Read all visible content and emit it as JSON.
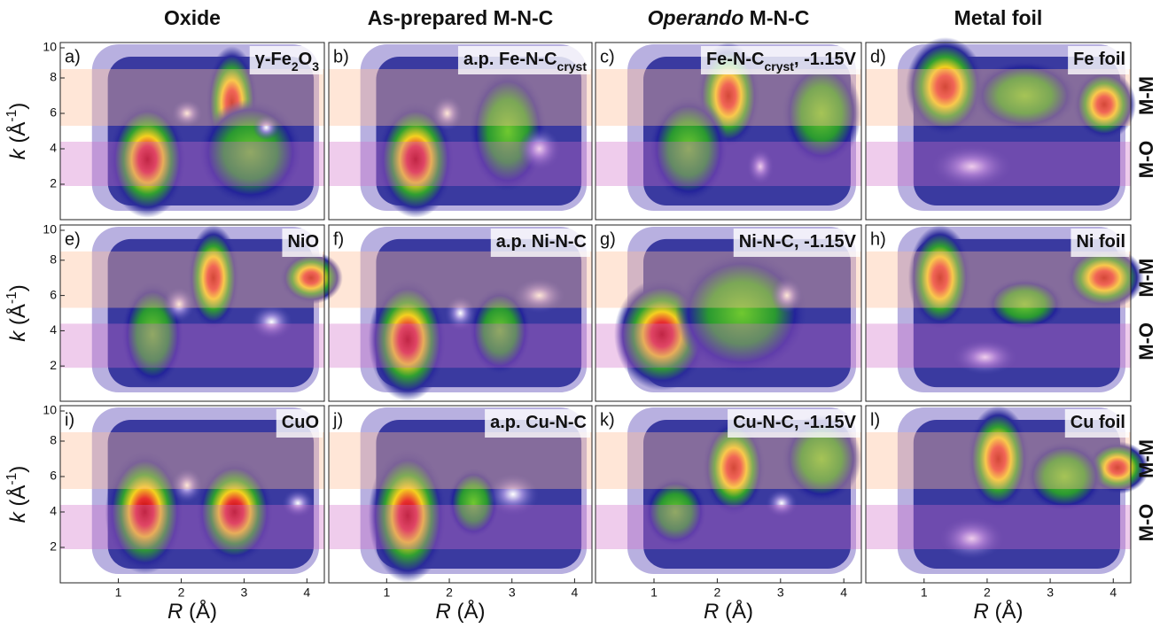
{
  "column_headers": [
    [
      {
        "text": "Oxide"
      }
    ],
    [
      {
        "text": "As-prepared M-N-C"
      }
    ],
    [
      {
        "text": "Operando",
        "italic": true
      },
      {
        "text": " M-N-C"
      }
    ],
    [
      {
        "text": "Metal foil"
      }
    ]
  ],
  "panels": [
    {
      "label": "a)",
      "title": [
        {
          "text": "γ-Fe"
        },
        {
          "text": "2",
          "sub": true
        },
        {
          "text": "O"
        },
        {
          "text": "3",
          "sub": true
        }
      ]
    },
    {
      "label": "b)",
      "title": [
        {
          "text": "a.p. Fe-N-C"
        },
        {
          "text": "cryst",
          "sub": true
        }
      ]
    },
    {
      "label": "c)",
      "title": [
        {
          "text": "Fe-N-C"
        },
        {
          "text": "cryst",
          "sub": true
        },
        {
          "text": ", -1.15V"
        }
      ]
    },
    {
      "label": "d)",
      "title": [
        {
          "text": "Fe foil"
        }
      ]
    },
    {
      "label": "e)",
      "title": [
        {
          "text": "NiO"
        }
      ]
    },
    {
      "label": "f)",
      "title": [
        {
          "text": "a.p. Ni-N-C"
        }
      ]
    },
    {
      "label": "g)",
      "title": [
        {
          "text": "Ni-N-C, -1.15V"
        }
      ]
    },
    {
      "label": "h)",
      "title": [
        {
          "text": "Ni foil"
        }
      ]
    },
    {
      "label": "i)",
      "title": [
        {
          "text": "CuO"
        }
      ]
    },
    {
      "label": "j)",
      "title": [
        {
          "text": "a.p. Cu-N-C"
        }
      ]
    },
    {
      "label": "k)",
      "title": [
        {
          "text": "Cu-N-C, -1.15V"
        }
      ]
    },
    {
      "label": "l)",
      "title": [
        {
          "text": "Cu foil"
        }
      ]
    }
  ],
  "y_axis_label": [
    {
      "text": "k",
      "italic": true
    },
    {
      "text": " (Å"
    },
    {
      "text": "-1",
      "sup": true
    },
    {
      "text": ")"
    }
  ],
  "x_axis_label": [
    {
      "text": "R",
      "italic": true
    },
    {
      "text": " (Å)"
    }
  ],
  "y_ticks": [
    "2",
    "4",
    "6",
    "8",
    "10"
  ],
  "x_ticks": [
    "1",
    "2",
    "3",
    "4"
  ],
  "band_labels": [
    {
      "text": "M-M",
      "color": "#f07a2a"
    },
    {
      "text": "M-O",
      "color": "#7a2a8a"
    }
  ]
}
